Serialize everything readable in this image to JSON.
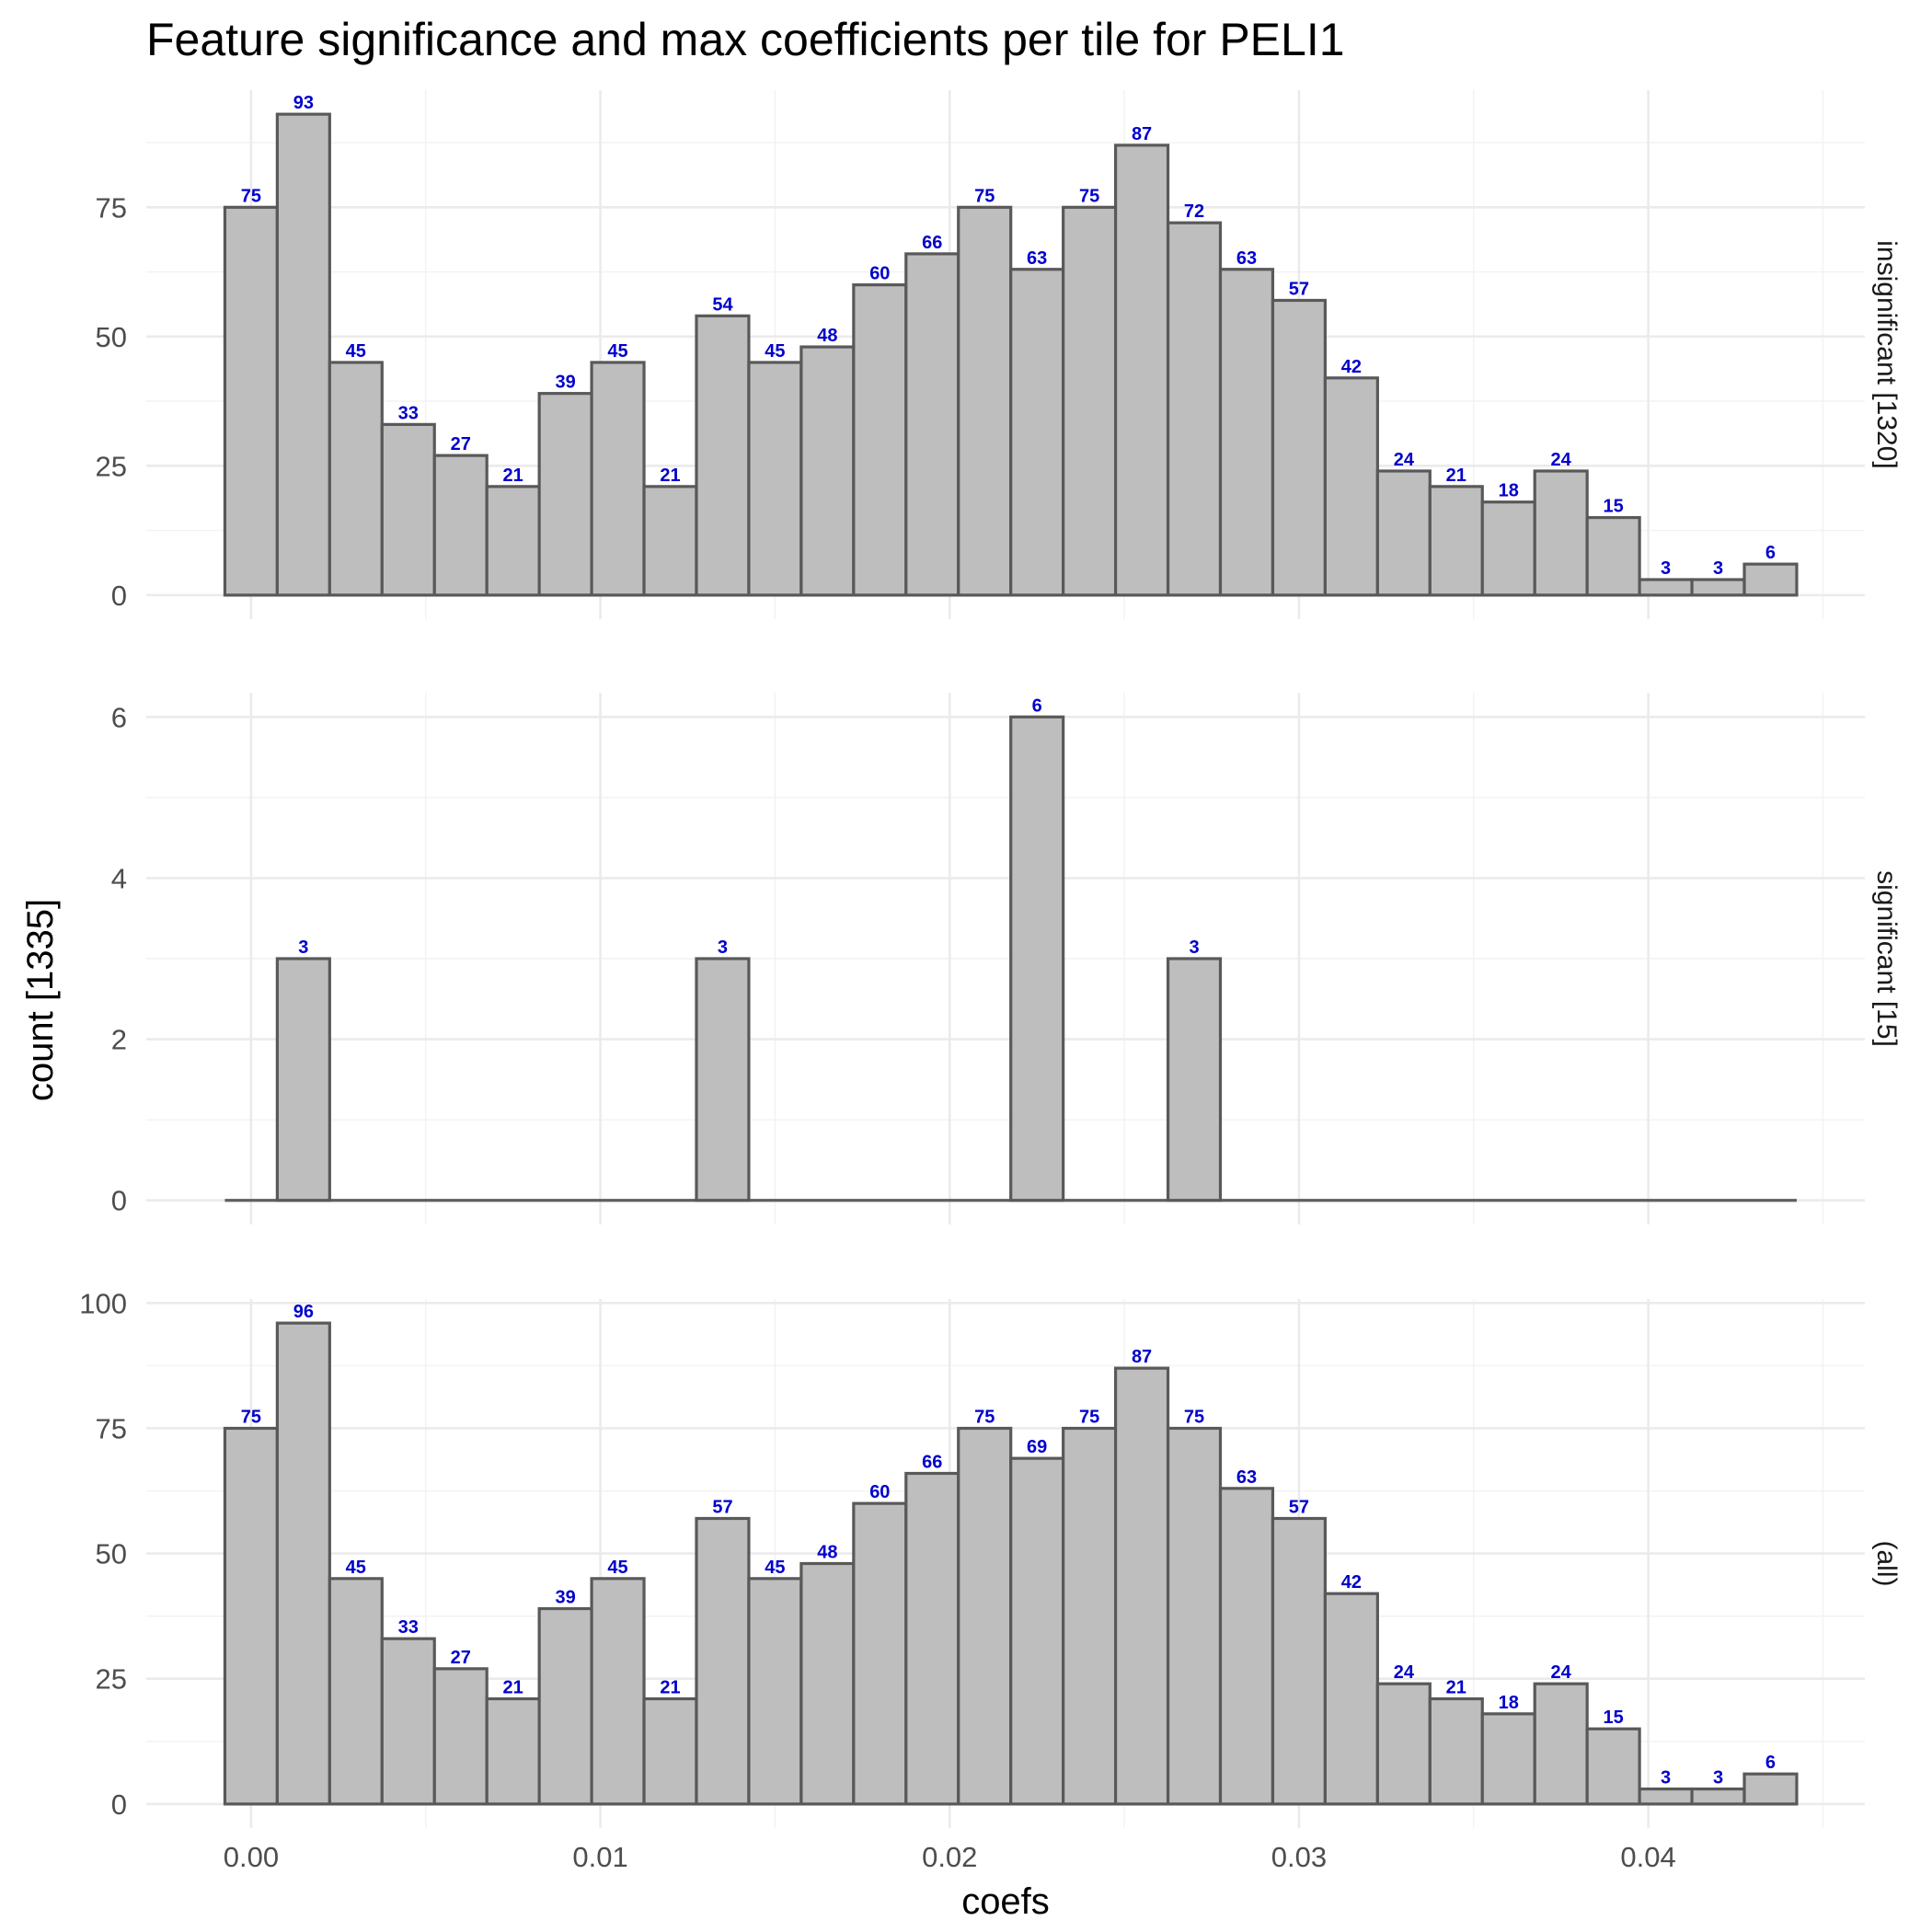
{
  "chart_data": {
    "type": "bar",
    "title": "Feature significance and max coefficients per tile for PELI1",
    "xlabel": "coefs",
    "ylabel": "count [1335]",
    "bin_width": 0.0015,
    "bin_centers": [
      0.0,
      0.0015,
      0.003,
      0.0045,
      0.006,
      0.0075,
      0.009,
      0.0105,
      0.012,
      0.0135,
      0.015,
      0.0165,
      0.018,
      0.0195,
      0.021,
      0.0225,
      0.024,
      0.0255,
      0.027,
      0.0285,
      0.03,
      0.0315,
      0.033,
      0.0345,
      0.036,
      0.0375,
      0.039,
      0.0405,
      0.042,
      0.0435
    ],
    "x_ticks": [
      {
        "value": 0.0,
        "label": "0.00"
      },
      {
        "value": 0.01,
        "label": "0.01"
      },
      {
        "value": 0.02,
        "label": "0.02"
      },
      {
        "value": 0.03,
        "label": "0.03"
      },
      {
        "value": 0.04,
        "label": "0.04"
      }
    ],
    "xlim": [
      -0.003,
      0.0462
    ],
    "facets": [
      {
        "strip": "insignificant [1320]",
        "values": [
          75,
          93,
          45,
          33,
          27,
          21,
          39,
          45,
          21,
          54,
          45,
          48,
          60,
          66,
          75,
          63,
          75,
          87,
          72,
          63,
          57,
          42,
          24,
          21,
          18,
          24,
          15,
          3,
          3,
          6
        ],
        "ylim": [
          -4.65,
          97.65
        ],
        "y_ticks": [
          0,
          25,
          50,
          75
        ]
      },
      {
        "strip": "significant [15]",
        "values": [
          0,
          3,
          0,
          0,
          0,
          0,
          0,
          0,
          0,
          3,
          0,
          0,
          0,
          0,
          0,
          6,
          0,
          0,
          3,
          0,
          0,
          0,
          0,
          0,
          0,
          0,
          0,
          0,
          0,
          0
        ],
        "ylim": [
          -0.3,
          6.3
        ],
        "y_ticks": [
          0,
          2,
          4,
          6
        ]
      },
      {
        "strip": "(all)",
        "values": [
          75,
          96,
          45,
          33,
          27,
          21,
          39,
          45,
          21,
          57,
          45,
          48,
          60,
          66,
          75,
          69,
          75,
          87,
          75,
          63,
          57,
          42,
          24,
          21,
          18,
          24,
          15,
          3,
          3,
          6
        ],
        "ylim": [
          -4.8,
          100.8
        ],
        "y_ticks": [
          0,
          25,
          50,
          75,
          100
        ]
      }
    ],
    "grid": true,
    "bar_fill": "#bebebe",
    "bar_stroke": "#595959",
    "label_color": "#0000cd"
  }
}
